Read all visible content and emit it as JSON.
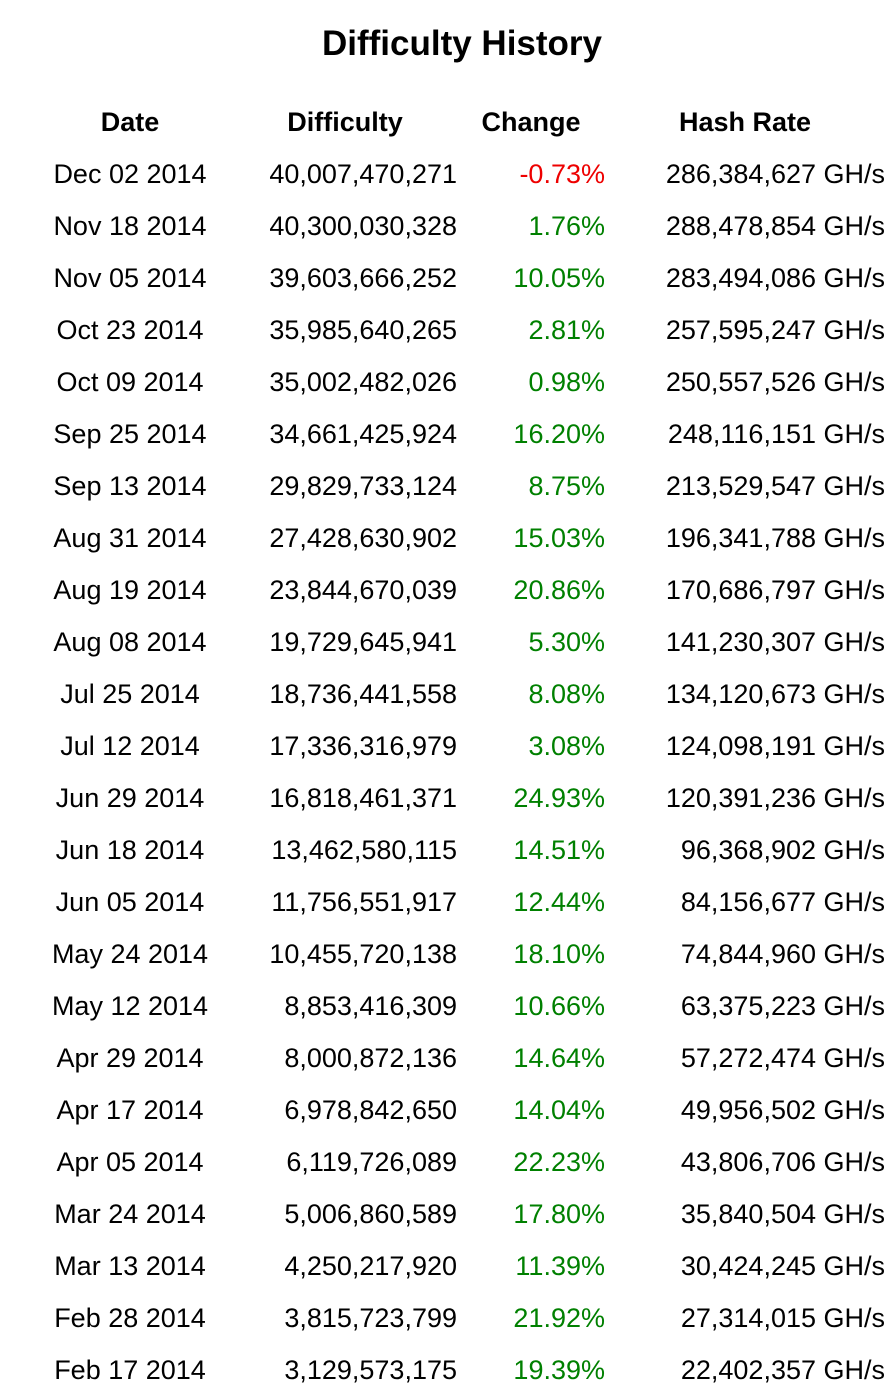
{
  "title": "Difficulty History",
  "colors": {
    "positive": "#008000",
    "negative": "#ee0000"
  },
  "columns": {
    "date": "Date",
    "difficulty": "Difficulty",
    "change": "Change",
    "hash_rate": "Hash Rate"
  },
  "rows": [
    {
      "date": "Dec 02 2014",
      "difficulty": "40,007,470,271",
      "change": "-0.73%",
      "hash_rate": "286,384,627 GH/s"
    },
    {
      "date": "Nov 18 2014",
      "difficulty": "40,300,030,328",
      "change": "1.76%",
      "hash_rate": "288,478,854 GH/s"
    },
    {
      "date": "Nov 05 2014",
      "difficulty": "39,603,666,252",
      "change": "10.05%",
      "hash_rate": "283,494,086 GH/s"
    },
    {
      "date": "Oct 23 2014",
      "difficulty": "35,985,640,265",
      "change": "2.81%",
      "hash_rate": "257,595,247 GH/s"
    },
    {
      "date": "Oct 09 2014",
      "difficulty": "35,002,482,026",
      "change": "0.98%",
      "hash_rate": "250,557,526 GH/s"
    },
    {
      "date": "Sep 25 2014",
      "difficulty": "34,661,425,924",
      "change": "16.20%",
      "hash_rate": "248,116,151 GH/s"
    },
    {
      "date": "Sep 13 2014",
      "difficulty": "29,829,733,124",
      "change": "8.75%",
      "hash_rate": "213,529,547 GH/s"
    },
    {
      "date": "Aug 31 2014",
      "difficulty": "27,428,630,902",
      "change": "15.03%",
      "hash_rate": "196,341,788 GH/s"
    },
    {
      "date": "Aug 19 2014",
      "difficulty": "23,844,670,039",
      "change": "20.86%",
      "hash_rate": "170,686,797 GH/s"
    },
    {
      "date": "Aug 08 2014",
      "difficulty": "19,729,645,941",
      "change": "5.30%",
      "hash_rate": "141,230,307 GH/s"
    },
    {
      "date": "Jul 25 2014",
      "difficulty": "18,736,441,558",
      "change": "8.08%",
      "hash_rate": "134,120,673 GH/s"
    },
    {
      "date": "Jul 12 2014",
      "difficulty": "17,336,316,979",
      "change": "3.08%",
      "hash_rate": "124,098,191 GH/s"
    },
    {
      "date": "Jun 29 2014",
      "difficulty": "16,818,461,371",
      "change": "24.93%",
      "hash_rate": "120,391,236 GH/s"
    },
    {
      "date": "Jun 18 2014",
      "difficulty": "13,462,580,115",
      "change": "14.51%",
      "hash_rate": "96,368,902 GH/s"
    },
    {
      "date": "Jun 05 2014",
      "difficulty": "11,756,551,917",
      "change": "12.44%",
      "hash_rate": "84,156,677 GH/s"
    },
    {
      "date": "May 24 2014",
      "difficulty": "10,455,720,138",
      "change": "18.10%",
      "hash_rate": "74,844,960 GH/s"
    },
    {
      "date": "May 12 2014",
      "difficulty": "8,853,416,309",
      "change": "10.66%",
      "hash_rate": "63,375,223 GH/s"
    },
    {
      "date": "Apr 29 2014",
      "difficulty": "8,000,872,136",
      "change": "14.64%",
      "hash_rate": "57,272,474 GH/s"
    },
    {
      "date": "Apr 17 2014",
      "difficulty": "6,978,842,650",
      "change": "14.04%",
      "hash_rate": "49,956,502 GH/s"
    },
    {
      "date": "Apr 05 2014",
      "difficulty": "6,119,726,089",
      "change": "22.23%",
      "hash_rate": "43,806,706 GH/s"
    },
    {
      "date": "Mar 24 2014",
      "difficulty": "5,006,860,589",
      "change": "17.80%",
      "hash_rate": "35,840,504 GH/s"
    },
    {
      "date": "Mar 13 2014",
      "difficulty": "4,250,217,920",
      "change": "11.39%",
      "hash_rate": "30,424,245 GH/s"
    },
    {
      "date": "Feb 28 2014",
      "difficulty": "3,815,723,799",
      "change": "21.92%",
      "hash_rate": "27,314,015 GH/s"
    },
    {
      "date": "Feb 17 2014",
      "difficulty": "3,129,573,175",
      "change": "19.39%",
      "hash_rate": "22,402,357 GH/s"
    }
  ]
}
